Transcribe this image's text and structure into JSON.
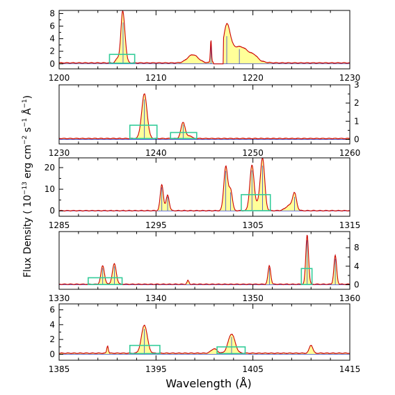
{
  "chart_data": {
    "type": "line",
    "xlabel": "Wavelength (Å)",
    "ylabel": "Flux Density (10⁻¹³ erg cm⁻² s⁻¹ Å⁻¹)",
    "ylabel_parts": {
      "lead": "Flux Density  ( 10",
      "exp1": "−13",
      "mid": " erg cm",
      "exp2": "−2",
      "mid2": " s",
      "exp3": "−1",
      "mid3": " Å",
      "exp4": "−1",
      "tail": ")"
    },
    "colors": {
      "spectrum": "#cc0000",
      "fill": "#ffff99",
      "window": "#33cc99",
      "continuum": "#3344cc",
      "axis": "#000000"
    },
    "panels": [
      {
        "xlim": [
          1200,
          1230
        ],
        "ylim": [
          -0.8,
          8.5
        ],
        "y_axis_side": "left",
        "xticks": [
          1200,
          1210,
          1220,
          1230
        ],
        "yticks": [
          0,
          2,
          4,
          6,
          8
        ],
        "baseline": 0.15,
        "lines": [
          {
            "c": 1206.0,
            "a": 0.6,
            "s": 0.18
          },
          {
            "c": 1206.5,
            "a": 1.2,
            "s": 0.12
          },
          {
            "c": 1206.6,
            "a": 7.3,
            "s": 0.22
          },
          {
            "c": 1213.8,
            "a": 1.3,
            "s": 0.55
          },
          {
            "c": 1215.67,
            "a": 3.6,
            "s": 0.06
          },
          {
            "c": 1217.3,
            "a": 4.9,
            "s": 0.35
          },
          {
            "c": 1218.6,
            "a": 2.6,
            "s": 1.1
          },
          {
            "c": 1220.2,
            "a": 0.4,
            "s": 0.3
          }
        ],
        "windows": [
          {
            "x0": 1205.2,
            "x1": 1207.8,
            "y0": 0.1,
            "y1": 1.5
          }
        ],
        "gap": [
          1215.9,
          1216.95
        ]
      },
      {
        "xlim": [
          1230,
          1260
        ],
        "ylim": [
          -0.25,
          3.0
        ],
        "y_axis_side": "right",
        "xticks": [
          1230,
          1240,
          1250,
          1260
        ],
        "yticks": [
          0,
          1,
          2,
          3
        ],
        "baseline": 0.05,
        "lines": [
          {
            "c": 1238.8,
            "a": 2.45,
            "s": 0.28
          },
          {
            "c": 1242.8,
            "a": 0.9,
            "s": 0.22
          },
          {
            "c": 1243.5,
            "a": 0.15,
            "s": 0.2
          }
        ],
        "windows": [
          {
            "x0": 1237.3,
            "x1": 1240.1,
            "y0": 0.05,
            "y1": 0.78
          },
          {
            "x0": 1241.5,
            "x1": 1244.2,
            "y0": 0.05,
            "y1": 0.38
          }
        ],
        "gap": null
      },
      {
        "xlim": [
          1285,
          1315
        ],
        "ylim": [
          -2.5,
          24.5
        ],
        "y_axis_side": "left",
        "xticks": [
          1285,
          1295,
          1305,
          1315
        ],
        "yticks": [
          0,
          10,
          20
        ],
        "baseline": 0.1,
        "lines": [
          {
            "c": 1295.6,
            "a": 12.1,
            "s": 0.16
          },
          {
            "c": 1296.2,
            "a": 7.2,
            "s": 0.16
          },
          {
            "c": 1302.2,
            "a": 20.5,
            "s": 0.2
          },
          {
            "c": 1302.7,
            "a": 9.5,
            "s": 0.18
          },
          {
            "c": 1304.9,
            "a": 20.8,
            "s": 0.22
          },
          {
            "c": 1305.6,
            "a": 3.0,
            "s": 0.3
          },
          {
            "c": 1306.0,
            "a": 23.2,
            "s": 0.22
          },
          {
            "c": 1309.3,
            "a": 7.2,
            "s": 0.2
          },
          {
            "c": 1308.8,
            "a": 2.5,
            "s": 0.4
          }
        ],
        "windows": [
          {
            "x0": 1303.8,
            "x1": 1306.8,
            "y0": 0.1,
            "y1": 7.5
          }
        ],
        "gap": null
      },
      {
        "xlim": [
          1330,
          1360
        ],
        "ylim": [
          -1.0,
          11.5
        ],
        "y_axis_side": "right",
        "xticks": [
          1330,
          1340,
          1350,
          1360
        ],
        "yticks": [
          0,
          4,
          8
        ],
        "baseline": 0.1,
        "lines": [
          {
            "c": 1334.5,
            "a": 4.0,
            "s": 0.18
          },
          {
            "c": 1335.7,
            "a": 4.4,
            "s": 0.2
          },
          {
            "c": 1343.3,
            "a": 0.8,
            "s": 0.1
          },
          {
            "c": 1351.7,
            "a": 4.0,
            "s": 0.14
          },
          {
            "c": 1355.6,
            "a": 10.7,
            "s": 0.14
          },
          {
            "c": 1358.5,
            "a": 6.2,
            "s": 0.14
          }
        ],
        "windows": [
          {
            "x0": 1333.0,
            "x1": 1336.5,
            "y0": 0.05,
            "y1": 1.5
          },
          {
            "x0": 1355.0,
            "x1": 1356.1,
            "y0": 0.05,
            "y1": 3.5
          }
        ],
        "gap": null
      },
      {
        "xlim": [
          1385,
          1415
        ],
        "ylim": [
          -0.8,
          6.8
        ],
        "y_axis_side": "left",
        "xticks": [
          1385,
          1395,
          1405,
          1415
        ],
        "yticks": [
          0,
          2,
          4,
          6
        ],
        "baseline": 0.15,
        "lines": [
          {
            "c": 1390.0,
            "a": 1.0,
            "s": 0.08
          },
          {
            "c": 1393.8,
            "a": 3.8,
            "s": 0.3
          },
          {
            "c": 1401.0,
            "a": 0.6,
            "s": 0.3
          },
          {
            "c": 1402.8,
            "a": 2.6,
            "s": 0.35
          },
          {
            "c": 1411.0,
            "a": 1.1,
            "s": 0.18
          }
        ],
        "windows": [
          {
            "x0": 1392.3,
            "x1": 1395.4,
            "y0": 0.1,
            "y1": 1.2
          },
          {
            "x0": 1401.3,
            "x1": 1404.2,
            "y0": 0.1,
            "y1": 1.0
          }
        ],
        "gap": null
      }
    ]
  }
}
